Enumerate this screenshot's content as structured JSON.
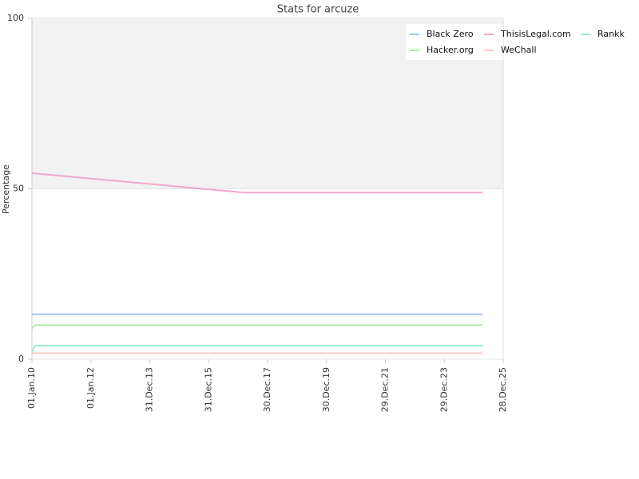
{
  "chart_data": {
    "type": "line",
    "title": "Stats for arcuze",
    "y_label": "Percentage",
    "x": [
      2010.0,
      2010.1,
      2017.2,
      2025.3
    ],
    "xlim": [
      2010,
      2026
    ],
    "xticks": [
      {
        "value": 2010,
        "label": "01.Jan.10"
      },
      {
        "value": 2012,
        "label": "01.Jan.12"
      },
      {
        "value": 2014,
        "label": "31.Dec.13"
      },
      {
        "value": 2016,
        "label": "31.Dec.15"
      },
      {
        "value": 2018,
        "label": "30.Dec.17"
      },
      {
        "value": 2020,
        "label": "30.Dec.19"
      },
      {
        "value": 2022,
        "label": "29.Dec.21"
      },
      {
        "value": 2024,
        "label": "29.Dec.23"
      },
      {
        "value": 2026,
        "label": "28.Dec.25"
      }
    ],
    "ylim": [
      0,
      100
    ],
    "yticks": [
      0,
      50,
      100
    ],
    "grid": true,
    "series": [
      {
        "name": "Black Zero",
        "color": "#a0c4f0",
        "values": [
          13.2,
          13.2,
          13.2,
          13.2
        ]
      },
      {
        "name": "ThisisLegal.com",
        "color": "#f0a8cc",
        "values": [
          54.6,
          54.5,
          48.9,
          48.9
        ]
      },
      {
        "name": "Rankk",
        "color": "#a0ecd4",
        "values": [
          2,
          4,
          4,
          4
        ]
      },
      {
        "name": "Hacker.org",
        "color": "#acf0a4",
        "values": [
          9,
          10,
          10,
          10
        ]
      },
      {
        "name": "WeChall",
        "color": "#f8c8c8",
        "values": [
          1.8,
          1.8,
          1.8,
          1.8
        ]
      }
    ]
  }
}
